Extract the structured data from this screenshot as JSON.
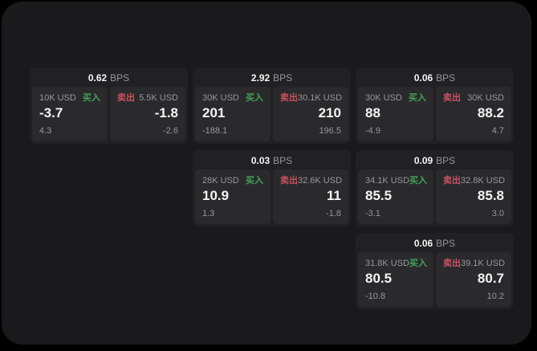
{
  "labels": {
    "bps_suffix": "BPS",
    "buy": "买入",
    "sell": "卖出"
  },
  "colors": {
    "page_bg": "#000000",
    "window_bg": "#1a1a1c",
    "card_bg": "#212124",
    "panel_bg": "#2a2a2d",
    "buy_green": "#44a25a",
    "sell_red": "#cb5060",
    "value_text": "#f4f4f5",
    "muted_text": "#97979b"
  },
  "cards": [
    {
      "bps": "0.62",
      "buy": {
        "size": "10K USD",
        "value": "-3.7",
        "delta": "4.3"
      },
      "sell": {
        "size": "5.5K USD",
        "value": "-1.8",
        "delta": "-2.6"
      }
    },
    {
      "bps": "2.92",
      "buy": {
        "size": "30K USD",
        "value": "201",
        "delta": "-188.1"
      },
      "sell": {
        "size": "30.1K USD",
        "value": "210",
        "delta": "196.5"
      }
    },
    {
      "bps": "0.06",
      "buy": {
        "size": "30K USD",
        "value": "88",
        "delta": "-4.9"
      },
      "sell": {
        "size": "30K USD",
        "value": "88.2",
        "delta": "4.7"
      }
    },
    {
      "bps": "0.03",
      "buy": {
        "size": "28K USD",
        "value": "10.9",
        "delta": "1.3"
      },
      "sell": {
        "size": "32.6K USD",
        "value": "11",
        "delta": "-1.8"
      }
    },
    {
      "bps": "0.09",
      "buy": {
        "size": "34.1K USD",
        "value": "85.5",
        "delta": "-3.1"
      },
      "sell": {
        "size": "32.8K USD",
        "value": "85.8",
        "delta": "3.0"
      }
    },
    {
      "bps": "0.06",
      "buy": {
        "size": "31.8K USD",
        "value": "80.5",
        "delta": "-10.8"
      },
      "sell": {
        "size": "39.1K USD",
        "value": "80.7",
        "delta": "10.2"
      }
    }
  ]
}
